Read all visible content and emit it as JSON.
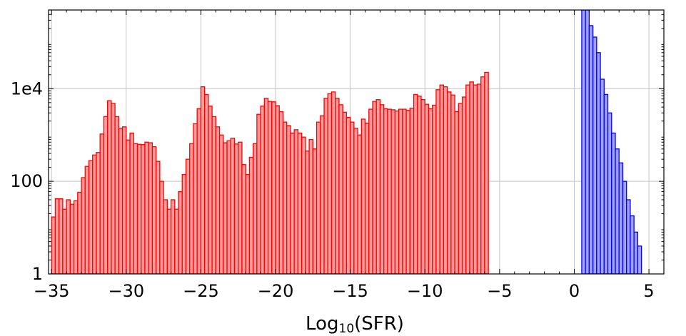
{
  "chart_data": {
    "type": "bar",
    "title": "",
    "xlabel_main": "Log",
    "xlabel_sub": "10",
    "xlabel_tail": "(SFR)",
    "ylabel": "",
    "y_scale": "log",
    "xlim": [
      -35.2,
      6.0
    ],
    "ylim": [
      1,
      500000
    ],
    "grid": true,
    "x_ticks": [
      {
        "value": -35,
        "label": "−35"
      },
      {
        "value": -30,
        "label": "−30"
      },
      {
        "value": -25,
        "label": "−25"
      },
      {
        "value": -20,
        "label": "−20"
      },
      {
        "value": -15,
        "label": "−15"
      },
      {
        "value": -10,
        "label": "−10"
      },
      {
        "value": -5,
        "label": "−5"
      },
      {
        "value": 0,
        "label": "0"
      },
      {
        "value": 5,
        "label": "5"
      }
    ],
    "y_ticks": [
      {
        "value": 1,
        "label": "1"
      },
      {
        "value": 100,
        "label": "100"
      },
      {
        "value": 10000,
        "label": "1e4"
      }
    ],
    "series": [
      {
        "color": "#ff0000",
        "fill": "#ff9a9a",
        "bin_start": -35.0,
        "bin_width": 0.25,
        "values": [
          17,
          42,
          42,
          25,
          40,
          32,
          38,
          58,
          120,
          210,
          280,
          370,
          420,
          1050,
          2500,
          5500,
          4800,
          2500,
          1400,
          1500,
          780,
          1100,
          650,
          630,
          620,
          700,
          680,
          560,
          270,
          100,
          40,
          25,
          40,
          25,
          60,
          140,
          300,
          650,
          1750,
          3700,
          11000,
          7500,
          4200,
          2500,
          1500,
          1000,
          680,
          750,
          850,
          640,
          700,
          230,
          140,
          330,
          650,
          2800,
          4200,
          6200,
          5300,
          5200,
          4300,
          3200,
          1900,
          1600,
          1100,
          1300,
          1100,
          900,
          450,
          800,
          500,
          1900,
          2600,
          6200,
          7800,
          8500,
          6200,
          4500,
          3100,
          2400,
          1900,
          1400,
          1000,
          2200,
          1800,
          3600,
          5300,
          5800,
          4500,
          3700,
          3600,
          3500,
          3300,
          3600,
          3600,
          3400,
          3800,
          7500,
          6900,
          5800,
          4600,
          3700,
          4400,
          9500,
          12000,
          11000,
          8500,
          7300,
          3200,
          4800,
          6600,
          12000,
          14000,
          12000,
          12500,
          18000,
          22500
        ]
      },
      {
        "color": "#0000ff",
        "fill": "#a0a0ff",
        "bin_start": 0.5,
        "bin_width": 0.25,
        "values": [
          500000,
          500000,
          230000,
          130000,
          60000,
          16000,
          7500,
          3000,
          1100,
          500,
          250,
          100,
          40,
          18,
          8,
          4
        ]
      }
    ]
  }
}
